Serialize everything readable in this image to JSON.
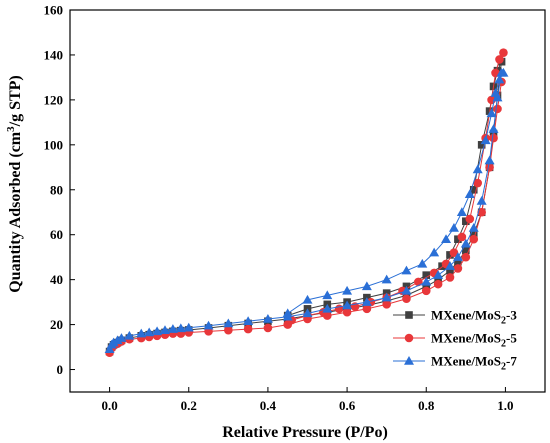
{
  "chart_data": {
    "type": "scatter",
    "title": "",
    "xlabel": "Relative Pressure (P/Po)",
    "ylabel": "Quantity Adsorbed (cm³/g STP)",
    "ylabel_parts": {
      "pre": "Quantity Adsorbed (cm",
      "sup": "3",
      "post": "/g STP)"
    },
    "xlim": [
      -0.1,
      1.1
    ],
    "ylim": [
      -10,
      160
    ],
    "xticks": [
      0.0,
      0.2,
      0.4,
      0.6,
      0.8,
      1.0
    ],
    "xtick_labels": [
      "0.0",
      "0.2",
      "0.4",
      "0.6",
      "0.8",
      "1.0"
    ],
    "yticks": [
      0,
      20,
      40,
      60,
      80,
      100,
      120,
      140,
      160
    ],
    "ytick_labels": [
      "0",
      "20",
      "40",
      "60",
      "80",
      "100",
      "120",
      "140",
      "160"
    ],
    "grid": false,
    "legend_position": "bottom-right",
    "series": [
      {
        "name": "MXene/MoS2-3",
        "label_parts": {
          "pre": "MXene/MoS",
          "sub": "2",
          "post": "-3"
        },
        "color": "#404040",
        "marker": "square",
        "adsorption": {
          "x": [
            0.0,
            0.005,
            0.01,
            0.02,
            0.03,
            0.05,
            0.08,
            0.1,
            0.12,
            0.14,
            0.16,
            0.18,
            0.2,
            0.25,
            0.3,
            0.35,
            0.4,
            0.45,
            0.5,
            0.55,
            0.6,
            0.65,
            0.7,
            0.75,
            0.8,
            0.83,
            0.86,
            0.88,
            0.9,
            0.92,
            0.94,
            0.96,
            0.97,
            0.98,
            0.99
          ],
          "y": [
            8,
            10,
            11,
            12,
            13,
            14,
            15,
            15.5,
            16,
            16.5,
            17,
            17.3,
            17.6,
            18.5,
            19.5,
            20.5,
            21.5,
            22.5,
            24,
            25.5,
            27,
            28.5,
            30.5,
            33,
            37,
            40,
            44,
            48,
            53,
            60,
            70,
            90,
            105,
            122,
            137
          ]
        },
        "desorption": {
          "x": [
            0.99,
            0.98,
            0.97,
            0.96,
            0.94,
            0.92,
            0.9,
            0.88,
            0.86,
            0.84,
            0.8,
            0.75,
            0.7,
            0.65,
            0.6,
            0.55,
            0.5,
            0.45
          ],
          "y": [
            137,
            133,
            126,
            115,
            100,
            80,
            66,
            58,
            51,
            46,
            42,
            37,
            34,
            32,
            30,
            29,
            27,
            24
          ]
        }
      },
      {
        "name": "MXene/MoS2-5",
        "label_parts": {
          "pre": "MXene/MoS",
          "sub": "2",
          "post": "-5"
        },
        "color": "#e8373a",
        "marker": "circle",
        "adsorption": {
          "x": [
            0.0,
            0.005,
            0.01,
            0.02,
            0.03,
            0.05,
            0.08,
            0.1,
            0.12,
            0.14,
            0.16,
            0.18,
            0.2,
            0.25,
            0.3,
            0.35,
            0.4,
            0.45,
            0.5,
            0.55,
            0.6,
            0.65,
            0.7,
            0.75,
            0.8,
            0.83,
            0.86,
            0.88,
            0.9,
            0.92,
            0.94,
            0.96,
            0.97,
            0.98,
            0.99
          ],
          "y": [
            7.5,
            9.5,
            10.5,
            11.5,
            12.5,
            13.5,
            14,
            14.5,
            15,
            15.5,
            16,
            16,
            16.5,
            17,
            17.5,
            18,
            18.5,
            20,
            22.5,
            24,
            25.5,
            27,
            29,
            31.5,
            35,
            38,
            41,
            45,
            50,
            58,
            70,
            90,
            103,
            116,
            128
          ]
        },
        "desorption": {
          "x": [
            0.995,
            0.985,
            0.975,
            0.965,
            0.95,
            0.93,
            0.91,
            0.89,
            0.87,
            0.85,
            0.82,
            0.78,
            0.74,
            0.7,
            0.66,
            0.62,
            0.58,
            0.54,
            0.5,
            0.46
          ],
          "y": [
            141,
            138,
            132,
            120,
            103,
            83,
            67,
            59,
            52,
            47,
            43,
            39,
            35,
            32,
            30,
            28,
            27,
            25.5,
            24,
            22
          ]
        }
      },
      {
        "name": "MXene/MoS2-7",
        "label_parts": {
          "pre": "MXene/MoS",
          "sub": "2",
          "post": "-7"
        },
        "color": "#2a6fd6",
        "marker": "triangle",
        "adsorption": {
          "x": [
            0.0,
            0.005,
            0.01,
            0.02,
            0.03,
            0.05,
            0.08,
            0.1,
            0.12,
            0.14,
            0.16,
            0.18,
            0.2,
            0.25,
            0.3,
            0.35,
            0.4,
            0.45,
            0.5,
            0.55,
            0.6,
            0.65,
            0.7,
            0.75,
            0.8,
            0.83,
            0.86,
            0.88,
            0.9,
            0.92,
            0.94,
            0.96,
            0.97,
            0.98,
            0.99
          ],
          "y": [
            9,
            11,
            12,
            13,
            14,
            15,
            16,
            16.5,
            17,
            17.5,
            18,
            18.3,
            18.6,
            19.5,
            20.5,
            21.5,
            22.5,
            23.5,
            25,
            27,
            28.5,
            30,
            32,
            35,
            39,
            42,
            46,
            50,
            56,
            63,
            75,
            93,
            107,
            121,
            132
          ]
        },
        "desorption": {
          "x": [
            0.995,
            0.985,
            0.975,
            0.965,
            0.95,
            0.93,
            0.91,
            0.89,
            0.87,
            0.85,
            0.82,
            0.79,
            0.75,
            0.7,
            0.65,
            0.6,
            0.55,
            0.5,
            0.45
          ],
          "y": [
            132,
            129,
            123,
            114,
            102,
            89,
            78,
            70,
            63,
            58,
            52,
            47,
            44,
            40,
            37,
            35,
            33,
            31,
            25
          ]
        }
      }
    ]
  }
}
